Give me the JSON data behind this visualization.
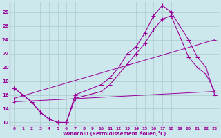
{
  "xlabel": "Windchill (Refroidissement éolien,°C)",
  "bg_color": "#cce8ec",
  "grid_color": "#aacccc",
  "line_color": "#990099",
  "xlim": [
    -0.5,
    23.5
  ],
  "ylim": [
    11.5,
    29.5
  ],
  "yticks": [
    12,
    14,
    16,
    18,
    20,
    22,
    24,
    26,
    28
  ],
  "xticks": [
    0,
    1,
    2,
    3,
    4,
    5,
    6,
    7,
    8,
    9,
    10,
    11,
    12,
    13,
    14,
    15,
    16,
    17,
    18,
    19,
    20,
    21,
    22,
    23
  ],
  "curve1_x": [
    0,
    1,
    2,
    3,
    4,
    5,
    6,
    7,
    10,
    11,
    12,
    13,
    14,
    15,
    16,
    17,
    18,
    20,
    21,
    22,
    23
  ],
  "curve1_y": [
    17,
    16,
    15,
    13.5,
    12.5,
    12,
    12,
    16,
    17.5,
    18.5,
    20,
    22,
    23,
    25,
    27.5,
    29,
    28,
    24,
    21.5,
    20,
    16
  ],
  "curve2_x": [
    0,
    1,
    2,
    3,
    4,
    5,
    6,
    7,
    10,
    11,
    12,
    13,
    14,
    15,
    16,
    17,
    18,
    20,
    21,
    22,
    23
  ],
  "curve2_y": [
    17,
    16,
    15,
    13.5,
    12.5,
    12,
    12,
    15.5,
    16.5,
    17.5,
    19,
    20.5,
    22,
    23.5,
    25.5,
    27,
    27.5,
    21.5,
    20,
    19,
    16.5
  ],
  "line3_x": [
    0,
    23
  ],
  "line3_y": [
    15.5,
    24
  ],
  "line4_x": [
    0,
    23
  ],
  "line4_y": [
    15,
    16.5
  ]
}
